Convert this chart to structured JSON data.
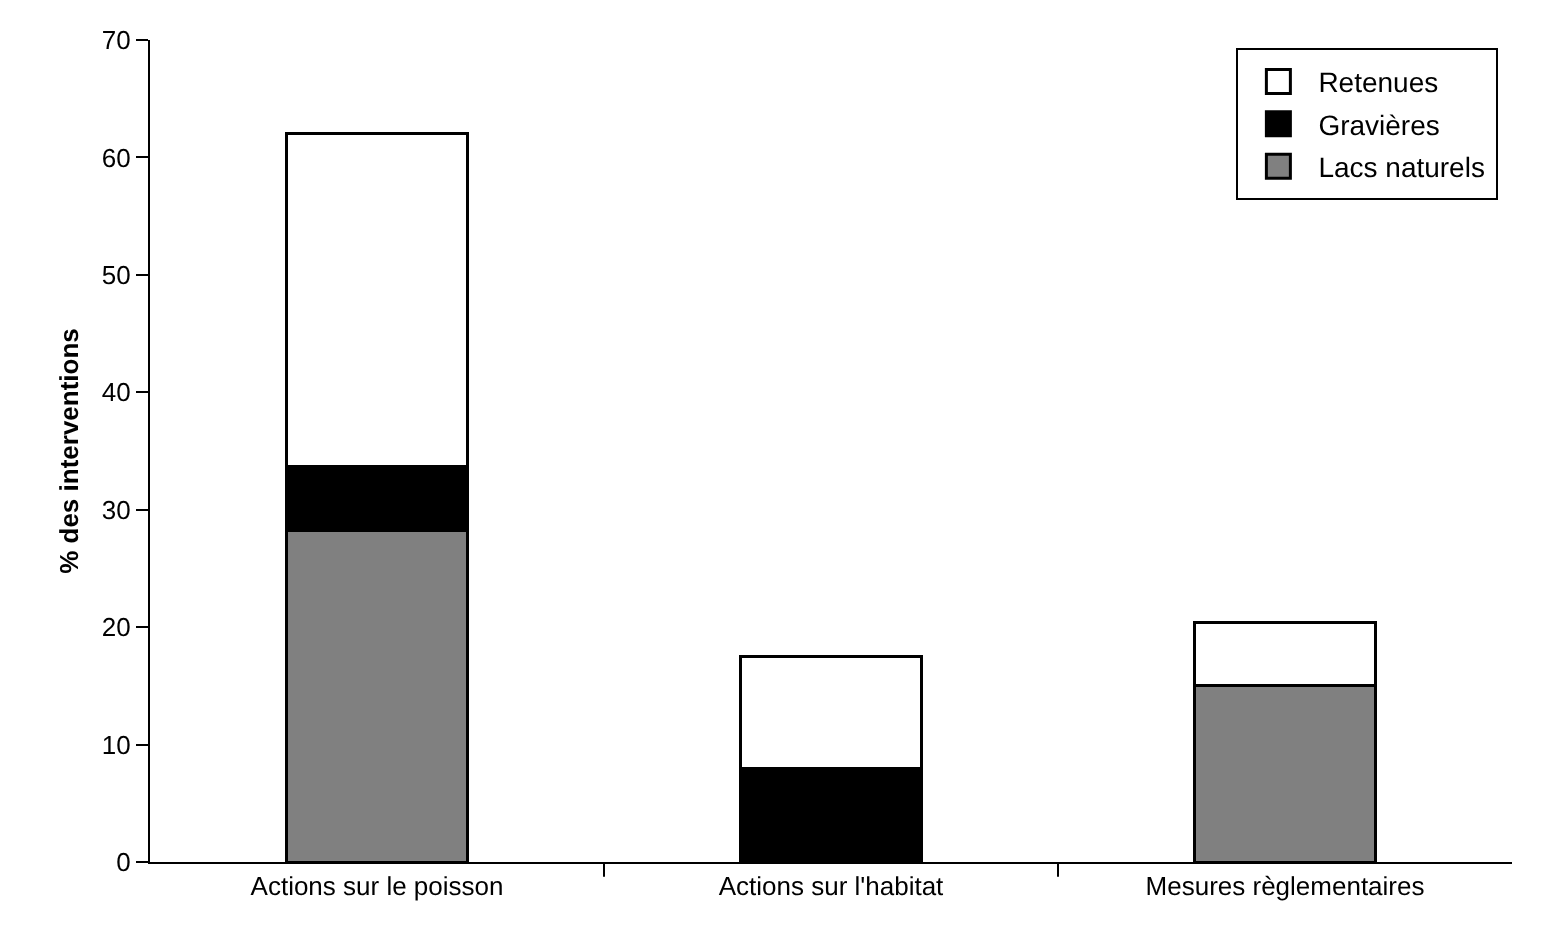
{
  "chart_data": {
    "type": "bar",
    "stacked": true,
    "ylabel": "% des interventions",
    "categories": [
      "Actions sur le poisson",
      "Actions sur l'habitat",
      "Mesures règlementaires"
    ],
    "series": [
      {
        "name": "Lacs naturels",
        "color": "#808080",
        "values": [
          28.2,
          0,
          15.0
        ]
      },
      {
        "name": "Gravières",
        "color": "#000000",
        "values": [
          5.5,
          8.0,
          0
        ]
      },
      {
        "name": "Retenues",
        "color": "#ffffff",
        "values": [
          28.3,
          9.5,
          5.4
        ]
      }
    ],
    "ylim": [
      0,
      70
    ],
    "yticks": [
      0,
      10,
      20,
      30,
      40,
      50,
      60,
      70
    ],
    "grid": false,
    "legend": "top right"
  }
}
